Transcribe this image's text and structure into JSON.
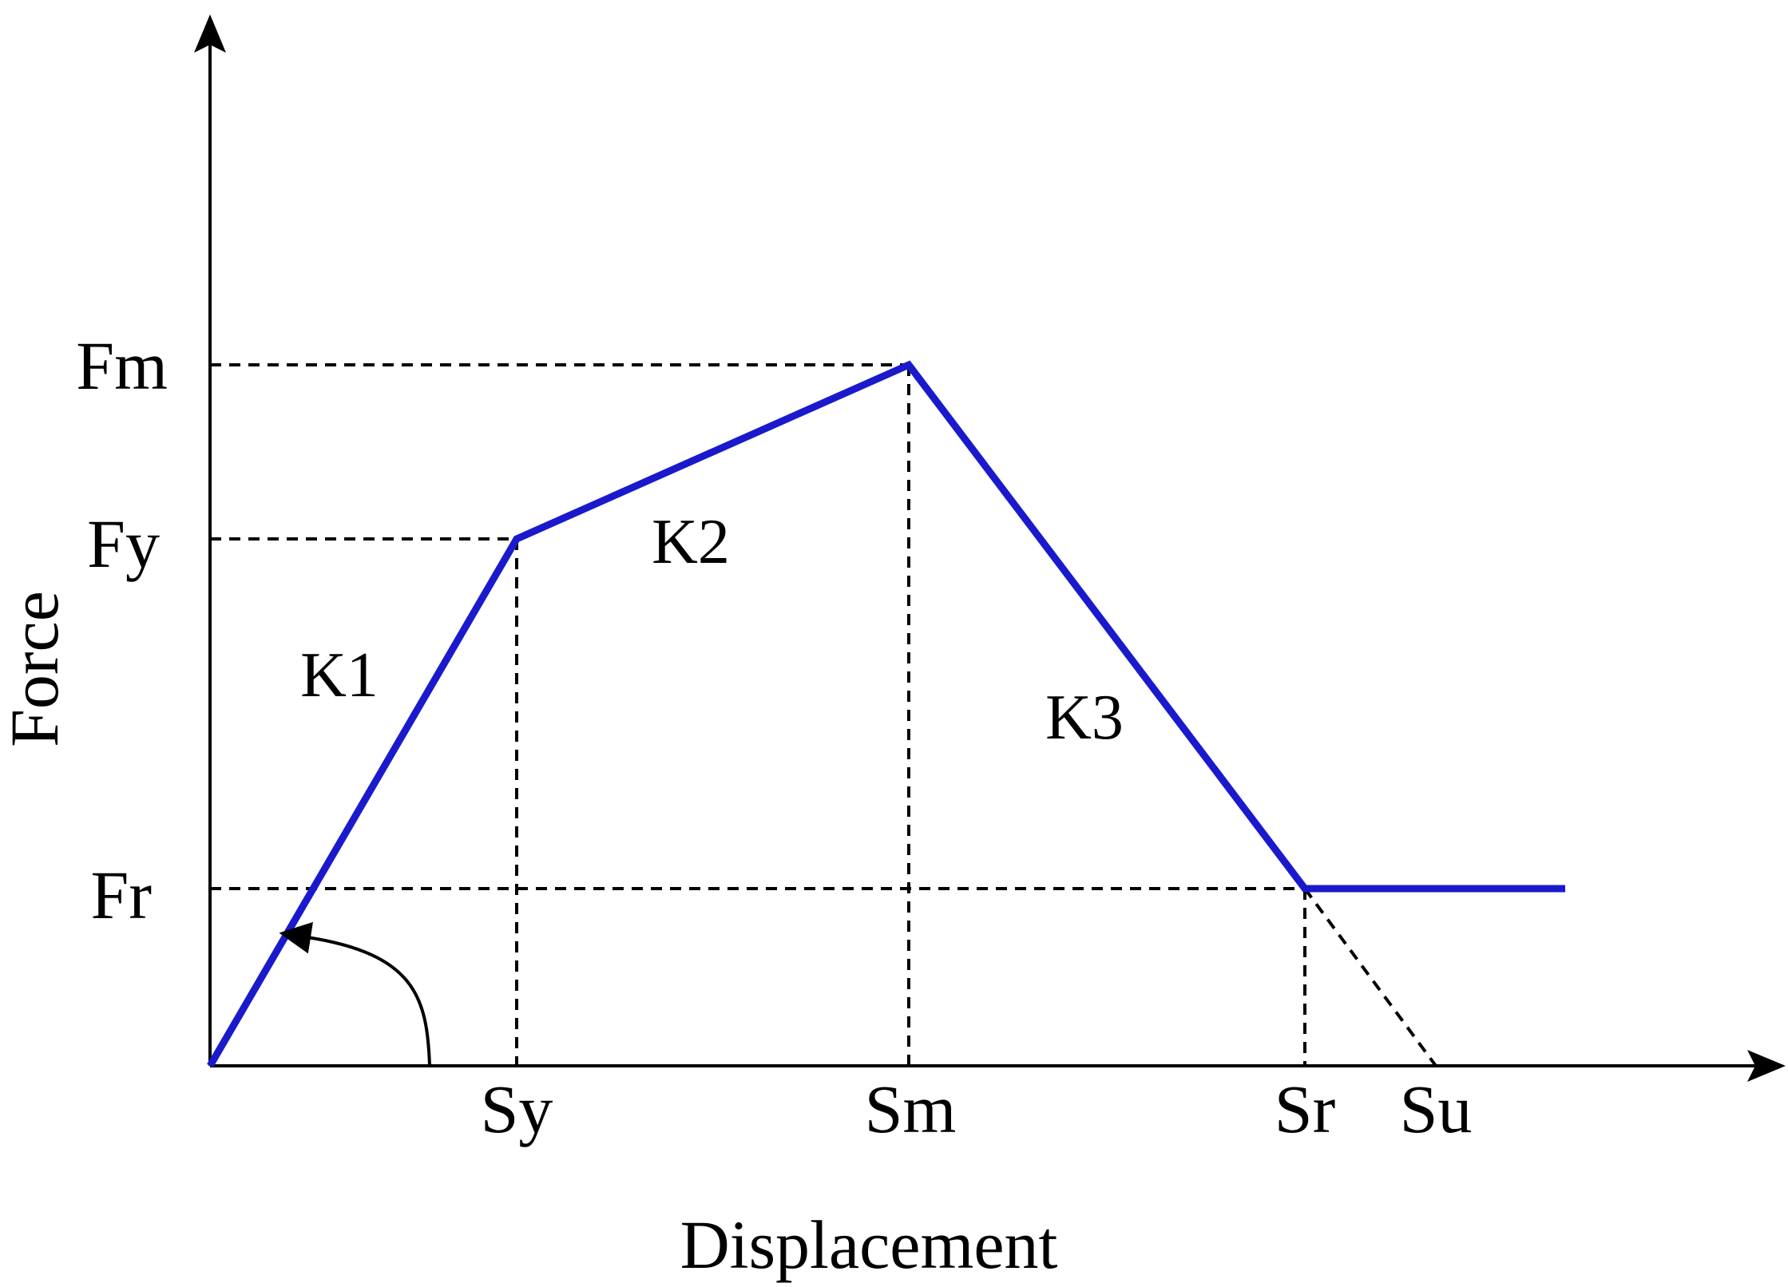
{
  "chart_data": {
    "type": "line",
    "title": "",
    "xlabel": "Displacement",
    "ylabel": "Force",
    "x_ticks": [
      "Sy",
      "Sm",
      "Sr",
      "Su"
    ],
    "y_ticks": [
      "Fm",
      "Fy",
      "Fr"
    ],
    "series": [
      {
        "points": [
          {
            "x": "0",
            "y": "0"
          },
          {
            "x": "Sy",
            "y": "Fy"
          },
          {
            "x": "Sm",
            "y": "Fm"
          },
          {
            "x": "Sr",
            "y": "Fr"
          },
          {
            "x": "Su",
            "y": "Fr"
          }
        ],
        "color": "#1a1acc"
      }
    ],
    "degradation_line": {
      "from": {
        "x": "Sr",
        "y": "Fr"
      },
      "to": {
        "x": "Su",
        "y": "0"
      }
    },
    "stiffness_labels": [
      "K1",
      "K2",
      "K3"
    ],
    "guide_lines": "dashed",
    "line_color": "#1a1acc"
  }
}
